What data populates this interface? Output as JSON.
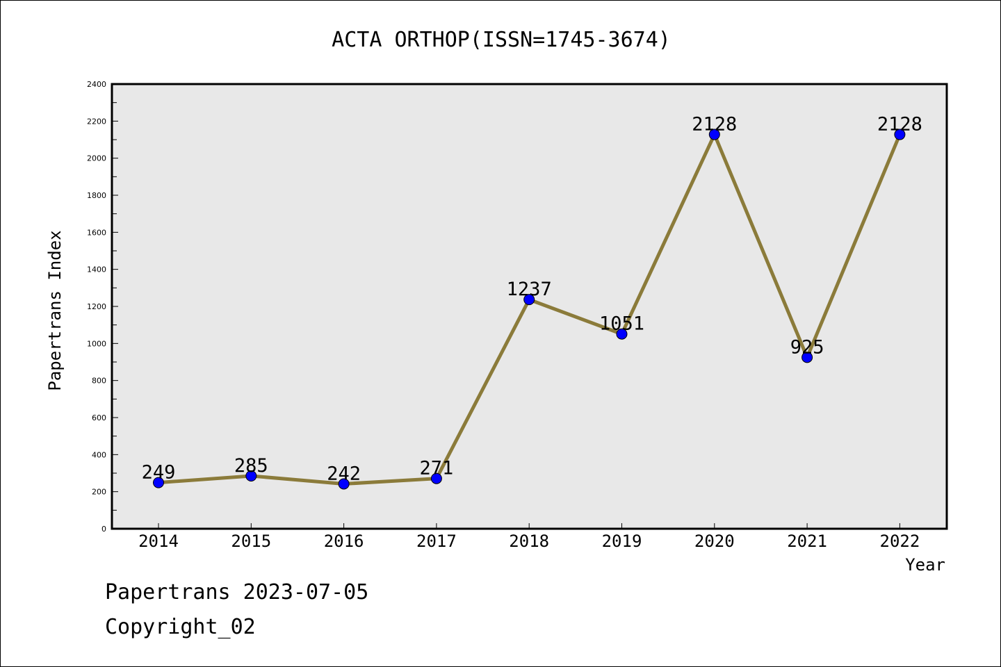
{
  "chart_data": {
    "type": "line",
    "title": "ACTA ORTHOP(ISSN=1745-3674)",
    "xlabel": "Year",
    "ylabel": "Papertrans Index",
    "categories": [
      "2014",
      "2015",
      "2016",
      "2017",
      "2018",
      "2019",
      "2020",
      "2021",
      "2022"
    ],
    "series": [
      {
        "values": [
          249,
          285,
          242,
          271,
          1237,
          1051,
          2128,
          925,
          2128
        ],
        "line_color": "#8b7b3a",
        "marker_color": "#0000ff"
      }
    ],
    "ylim": [
      0,
      2400
    ],
    "yticks": [
      0,
      200,
      400,
      600,
      800,
      1000,
      1200,
      1400,
      1600,
      1800,
      2000,
      2200,
      2400
    ],
    "data_labels": true,
    "grid": false,
    "plot_background": "#e8e8e8"
  },
  "footer": {
    "line1": "Papertrans 2023-07-05",
    "line2": "Copyright_02"
  }
}
